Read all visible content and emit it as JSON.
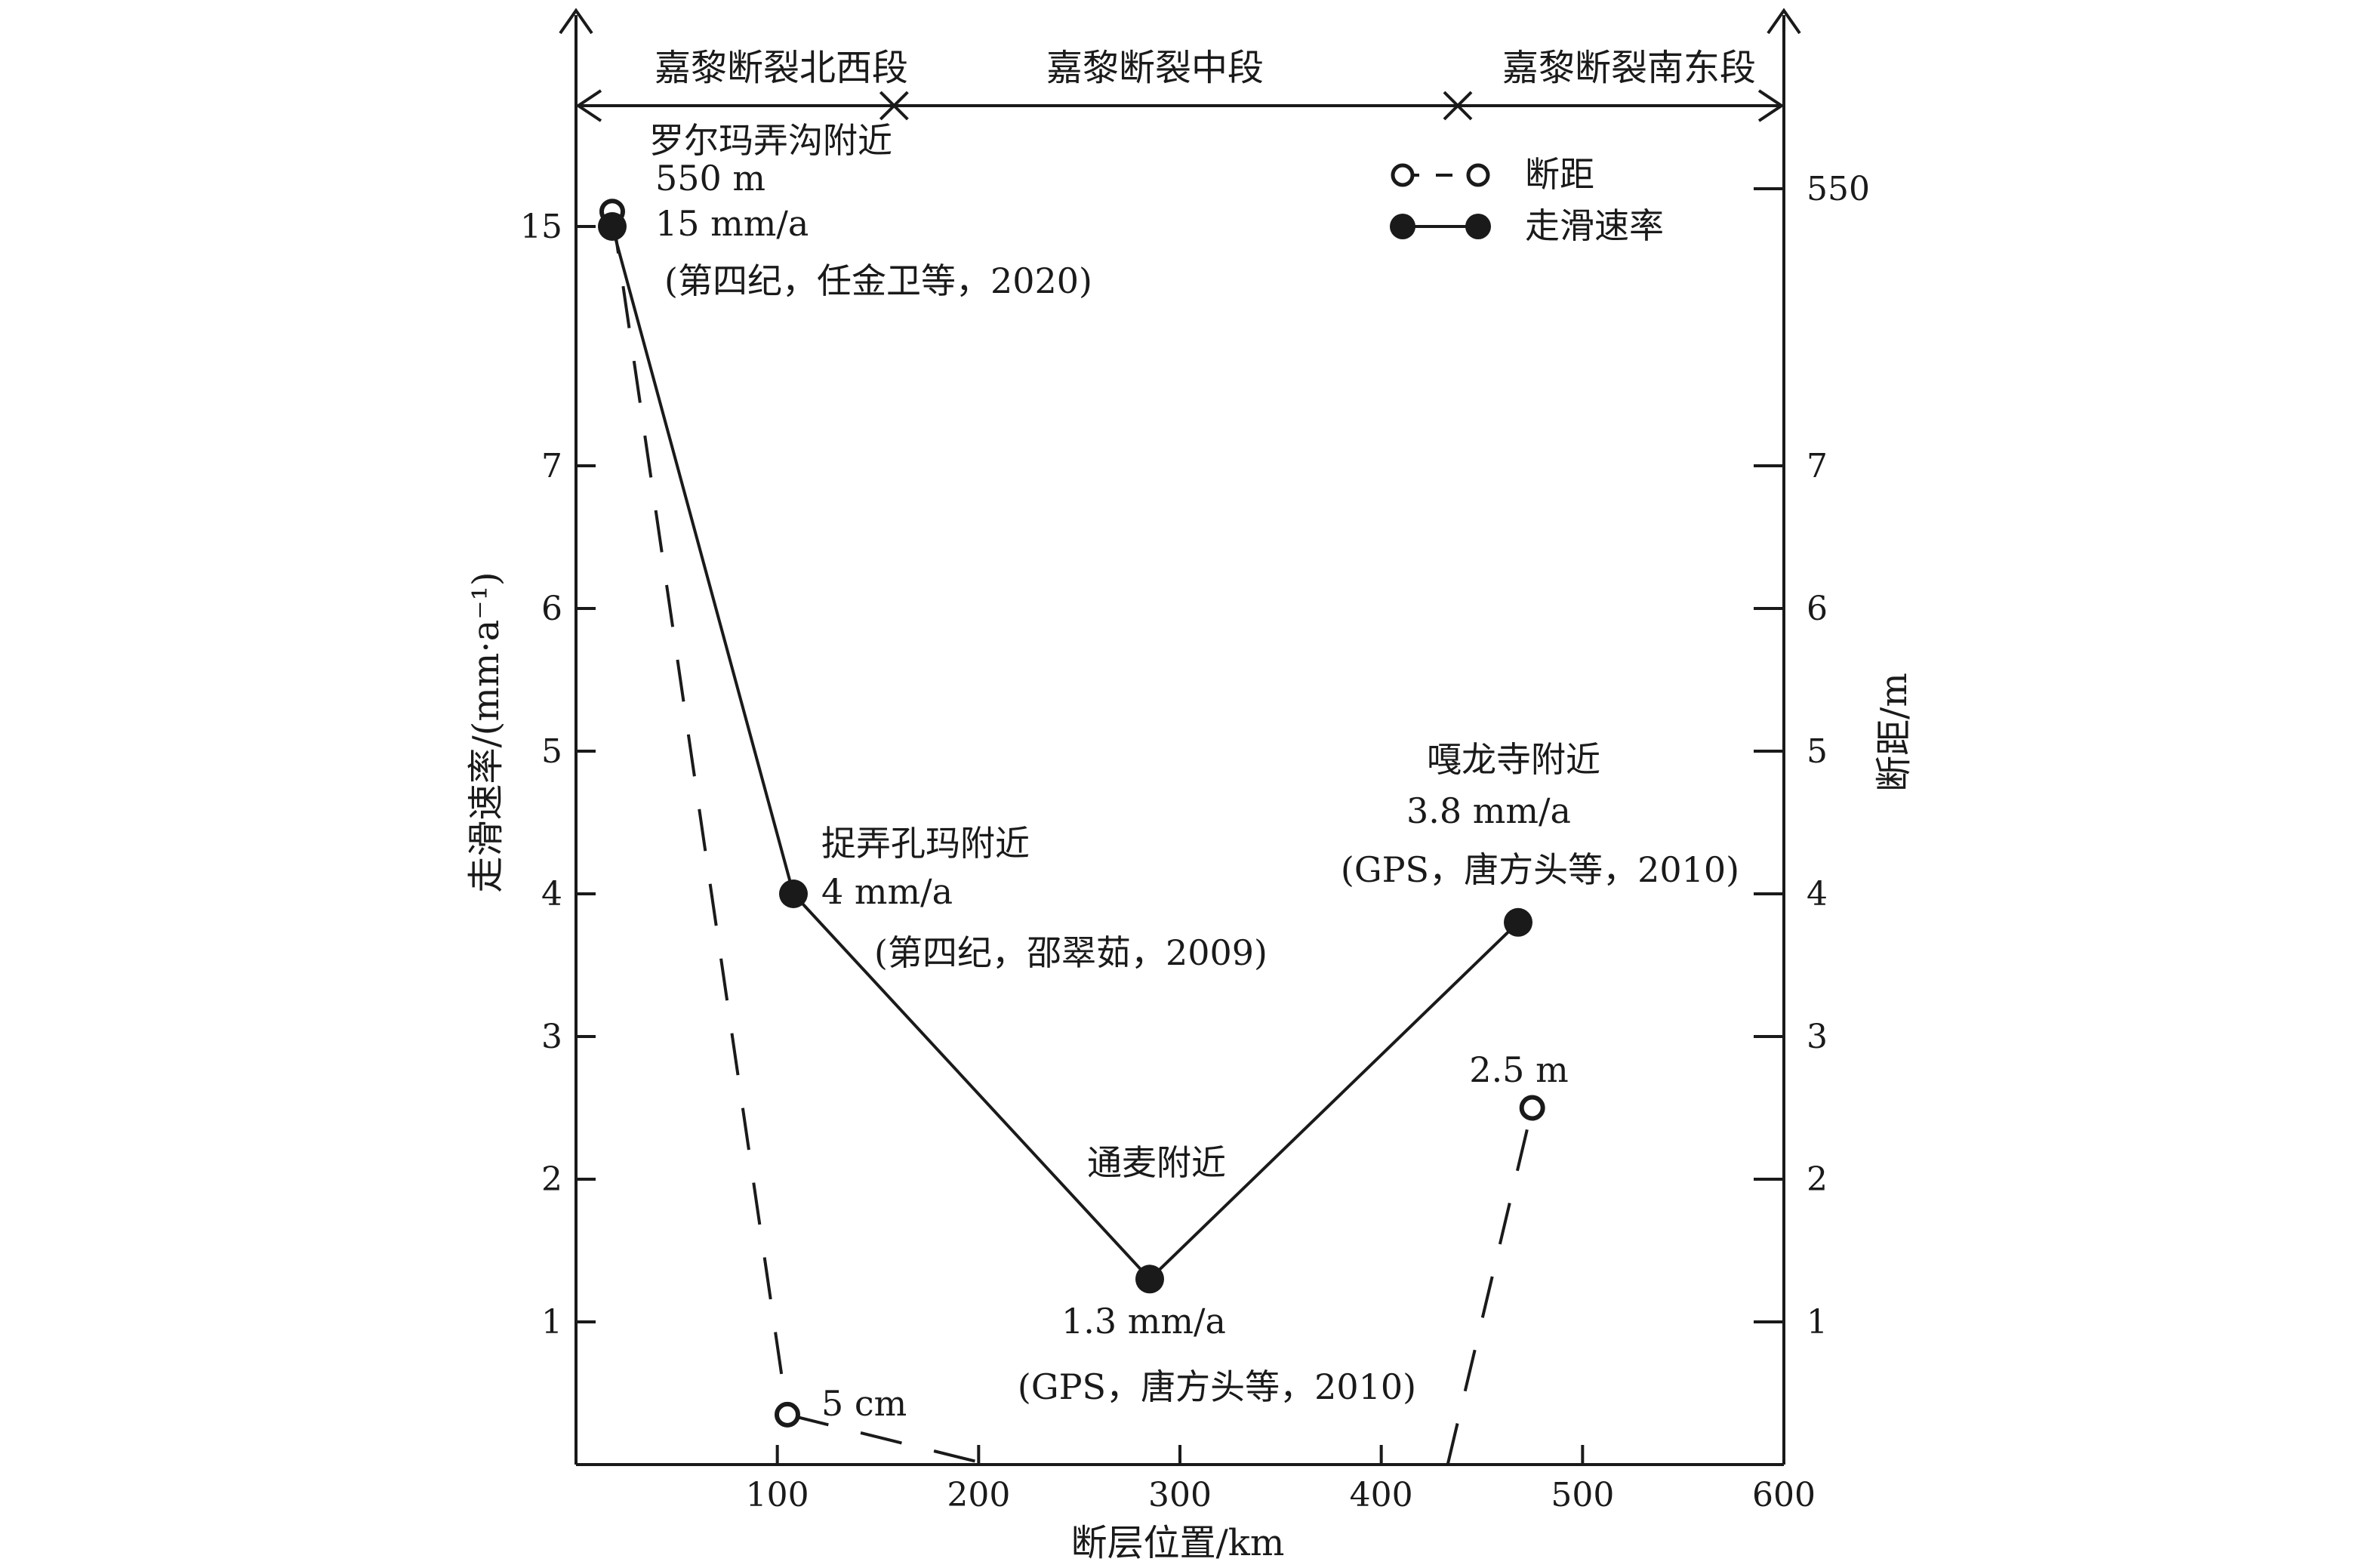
{
  "chart_data": {
    "type": "line",
    "xlabel": "断层位置/km",
    "ylabel_left": "走滑速率/(mm·a⁻¹)",
    "ylabel_right": "断距/m",
    "x_ticks": [
      "100",
      "200",
      "300",
      "400",
      "500",
      "600"
    ],
    "x_tick_values": [
      100,
      200,
      300,
      400,
      500,
      600
    ],
    "y_left_ticks": [
      "1",
      "2",
      "3",
      "4",
      "5",
      "6",
      "7",
      "15"
    ],
    "y_right_ticks": [
      "1",
      "2",
      "3",
      "4",
      "5",
      "6",
      "7",
      "550"
    ],
    "y_tick_values": [
      1,
      2,
      3,
      4,
      5,
      6,
      7,
      15
    ],
    "xlim": [
      0,
      600
    ],
    "axis_break": "y axis compressed above 7 (jump to 15 / 550)",
    "segments": [
      {
        "label": "嘉黎断裂北西段",
        "x_start": 0,
        "x_end": 158
      },
      {
        "label": "嘉黎断裂中段",
        "x_start": 158,
        "x_end": 438
      },
      {
        "label": "嘉黎断裂南东段",
        "x_start": 438,
        "x_end": 600
      }
    ],
    "legend": {
      "position": "top-right",
      "items": [
        {
          "label": "断距",
          "style": "dashed-open-circle"
        },
        {
          "label": "走滑速率",
          "style": "solid-filled-circle"
        }
      ]
    },
    "series": [
      {
        "name": "走滑速率",
        "points": [
          {
            "x": 18,
            "y": 15
          },
          {
            "x": 108,
            "y": 4
          },
          {
            "x": 285,
            "y": 1.3
          },
          {
            "x": 468,
            "y": 3.8
          }
        ]
      },
      {
        "name": "断距",
        "points": [
          {
            "x": 18,
            "y": 550,
            "plotted_as": 15.5
          },
          {
            "x": 105,
            "y": 0.05,
            "plotted_as": 0.35
          },
          {
            "x": 475,
            "y": 2.5,
            "plotted_as": 2.5
          }
        ]
      }
    ],
    "annotations": [
      {
        "lines": [
          "罗尔玛弄沟附近",
          "550 m",
          "15 mm/a",
          "(第四纪，任金卫等，2020)"
        ]
      },
      {
        "lines": [
          "捉弄孔玛附近",
          "4 mm/a",
          "(第四纪，邵翠茹，2009)"
        ]
      },
      {
        "lines": [
          "通麦附近",
          "1.3 mm/a",
          "(GPS，唐方头等，2010)"
        ]
      },
      {
        "lines": [
          "嘎龙寺附近",
          "3.8 mm/a",
          "(GPS，唐方头等，2010)"
        ]
      },
      {
        "lines": [
          "2.5 m"
        ]
      },
      {
        "lines": [
          "5 cm"
        ]
      }
    ]
  }
}
